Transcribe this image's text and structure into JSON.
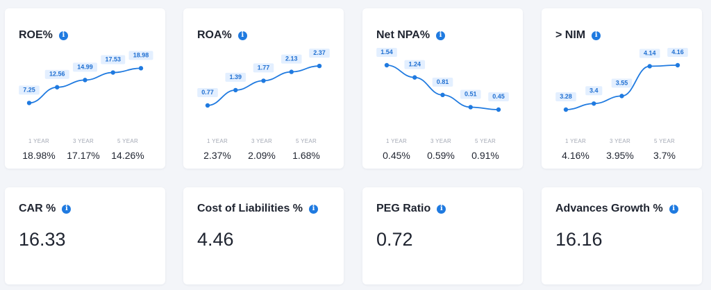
{
  "colors": {
    "accent": "#1f7ae0",
    "label_bg": "#e3efff",
    "label_text": "#1f6fd1",
    "period_label": "#a3a8b4"
  },
  "icons": {
    "info": "info-icon"
  },
  "chart_cards": [
    {
      "id": "roe",
      "title": "ROE%",
      "chart_data": {
        "type": "line",
        "title": "ROE%",
        "x": [
          1,
          2,
          3,
          4,
          5
        ],
        "values": [
          7.25,
          12.56,
          14.99,
          17.53,
          18.98
        ],
        "labels": [
          "7.25",
          "12.56",
          "14.99",
          "17.53",
          "18.98"
        ],
        "ylim": [
          5,
          20
        ]
      },
      "periods": [
        {
          "label": "1 YEAR",
          "value": "18.98%"
        },
        {
          "label": "3 YEAR",
          "value": "17.17%"
        },
        {
          "label": "5 YEAR",
          "value": "14.26%"
        }
      ]
    },
    {
      "id": "roa",
      "title": "ROA%",
      "chart_data": {
        "type": "line",
        "title": "ROA%",
        "x": [
          1,
          2,
          3,
          4,
          5
        ],
        "values": [
          0.77,
          1.39,
          1.77,
          2.13,
          2.37
        ],
        "labels": [
          "0.77",
          "1.39",
          "1.77",
          "2.13",
          "2.37"
        ],
        "ylim": [
          0.6,
          2.4
        ]
      },
      "periods": [
        {
          "label": "1 YEAR",
          "value": "2.37%"
        },
        {
          "label": "3 YEAR",
          "value": "2.09%"
        },
        {
          "label": "5 YEAR",
          "value": "1.68%"
        }
      ]
    },
    {
      "id": "npa",
      "title": "Net NPA%",
      "chart_data": {
        "type": "line",
        "title": "Net NPA%",
        "x": [
          1,
          2,
          3,
          4,
          5
        ],
        "values": [
          1.54,
          1.24,
          0.81,
          0.51,
          0.45
        ],
        "labels": [
          "1.54",
          "1.24",
          "0.81",
          "0.51",
          "0.45"
        ],
        "ylim": [
          0.45,
          1.54
        ]
      },
      "periods": [
        {
          "label": "1 YEAR",
          "value": "0.45%"
        },
        {
          "label": "3 YEAR",
          "value": "0.59%"
        },
        {
          "label": "5 YEAR",
          "value": "0.91%"
        }
      ]
    },
    {
      "id": "nim",
      "title": "> NIM",
      "chart_data": {
        "type": "line",
        "title": "> NIM",
        "x": [
          1,
          2,
          3,
          4,
          5
        ],
        "values": [
          3.28,
          3.4,
          3.55,
          4.14,
          4.16
        ],
        "labels": [
          "3.28",
          "3.4",
          "3.55",
          "4.14",
          "4.16"
        ],
        "ylim": [
          3.28,
          4.16
        ]
      },
      "periods": [
        {
          "label": "1 YEAR",
          "value": "4.16%"
        },
        {
          "label": "3 YEAR",
          "value": "3.95%"
        },
        {
          "label": "5 YEAR",
          "value": "3.7%"
        }
      ]
    }
  ],
  "stat_cards": [
    {
      "id": "car",
      "title": "CAR %",
      "value": "16.33"
    },
    {
      "id": "col",
      "title": "Cost of Liabilities %",
      "value": "4.46"
    },
    {
      "id": "peg",
      "title": "PEG Ratio",
      "value": "0.72"
    },
    {
      "id": "adv",
      "title": "Advances Growth %",
      "value": "16.16"
    }
  ]
}
